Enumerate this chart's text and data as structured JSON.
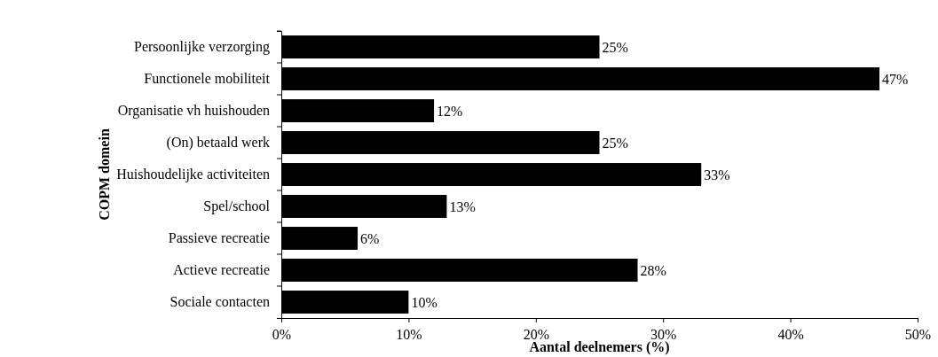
{
  "chart_data": {
    "type": "bar",
    "orientation": "horizontal",
    "xlabel": "Aantal deelnemers (%)",
    "ylabel": "COPM domein",
    "categories": [
      "Persoonlijke verzorging",
      "Functionele mobiliteit",
      "Organisatie vh huishouden",
      "(On) betaald werk",
      "Huishoudelijke activiteiten",
      "Spel/school",
      "Passieve recreatie",
      "Actieve recreatie",
      "Sociale contacten"
    ],
    "values": [
      25,
      47,
      12,
      25,
      33,
      13,
      6,
      28,
      10
    ],
    "value_labels": [
      "25%",
      "47%",
      "12%",
      "25%",
      "33%",
      "13%",
      "6%",
      "28%",
      "10%"
    ],
    "color": "#000000",
    "xlim": [
      0,
      50
    ],
    "xticks": [
      {
        "value": 0,
        "label": "0%"
      },
      {
        "value": 10,
        "label": "10%"
      },
      {
        "value": 20,
        "label": "20%"
      },
      {
        "value": 30,
        "label": "30%"
      },
      {
        "value": 40,
        "label": "40%"
      },
      {
        "value": 50,
        "label": "50%"
      }
    ],
    "grid": false
  }
}
